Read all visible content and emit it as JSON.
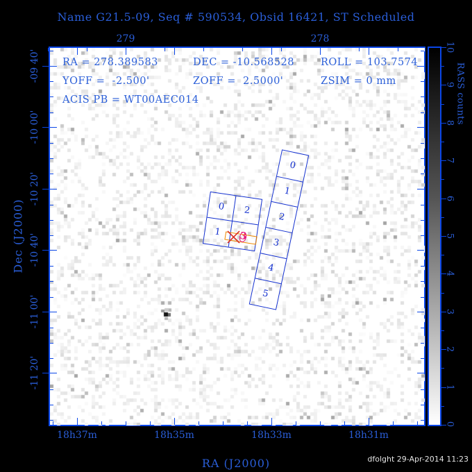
{
  "header": {
    "title": "Name G21.5-09, Seq # 590534, Obsid 16421, ST Scheduled"
  },
  "plot": {
    "info_rows": [
      [
        "RA = 278.389583",
        "DEC = -10.568528",
        "ROLL = 103.7574"
      ],
      [
        "YOFF =  -2.500'",
        "ZOFF =  2.5000'",
        "ZSIM = 0 mm"
      ],
      [
        "ACIS PB = WT00AEC014"
      ]
    ]
  },
  "axes": {
    "top": {
      "labels": [
        "279",
        "278"
      ]
    },
    "bottom": {
      "labels": [
        "18h37m",
        "18h35m",
        "18h33m",
        "18h31m"
      ],
      "title": "RA (J2000)"
    },
    "left": {
      "labels": [
        "-09 40'",
        "-10 00'",
        "-10 20'",
        "-10 40'",
        "-11 00'",
        "-11 20'"
      ],
      "title": "Dec (J2000)"
    }
  },
  "colorbar": {
    "label": "RASS counts",
    "ticks": [
      "10",
      "9",
      "8",
      "7",
      "6",
      "5",
      "4",
      "3",
      "2",
      "1",
      "0"
    ]
  },
  "overlays": {
    "acis_i": {
      "labels": [
        "0",
        "2",
        "1",
        "3"
      ]
    },
    "acis_s": {
      "labels": [
        "0",
        "1",
        "2",
        "3",
        "4",
        "5"
      ]
    }
  },
  "footer": {
    "credit": "dfolght 29-Apr-2014 11:23"
  },
  "colors": {
    "text_blue": "#2a5ed8",
    "frame_blue": "#0a46e8",
    "chip_blue": "#1330cf",
    "target_orange": "#ee8800",
    "marker_red": "#d93025",
    "source_magenta": "#e8187d",
    "colorbar_high": "#000000",
    "colorbar_low": "#ffffff"
  },
  "chart_data": {
    "type": "heatmap",
    "title": "Name G21.5-09, Seq # 590534, Obsid 16421, ST Scheduled",
    "xlabel": "RA (J2000)",
    "ylabel": "Dec (J2000)",
    "x_tick_labels_bottom": [
      "18h37m",
      "18h35m",
      "18h33m",
      "18h31m"
    ],
    "x_tick_labels_top_degrees": [
      "279",
      "278"
    ],
    "y_tick_labels": [
      "-09 40'",
      "-10 00'",
      "-10 20'",
      "-10 40'",
      "-11 00'",
      "-11 20'"
    ],
    "colorbar": {
      "label": "RASS counts",
      "min": 0,
      "max": 10,
      "scale": "black-high to white-low"
    },
    "pointing": {
      "ra_deg": 278.389583,
      "dec_deg": -10.568528,
      "roll_deg": 103.7574,
      "yoff_arcmin": -2.5,
      "zoff_arcmin": 2.5,
      "zsim_mm": 0,
      "acis_pb": "WT00AEC014"
    },
    "overlays": {
      "acis_i_chips": [
        "0",
        "2",
        "1",
        "3"
      ],
      "acis_s_chips": [
        "0",
        "1",
        "2",
        "3",
        "4",
        "5"
      ],
      "target_marker": "red X with orange target box and magenta source contour on ACIS-I chip 3",
      "background_source": "faint dark point source near 18h34.6m -10 57'"
    }
  }
}
